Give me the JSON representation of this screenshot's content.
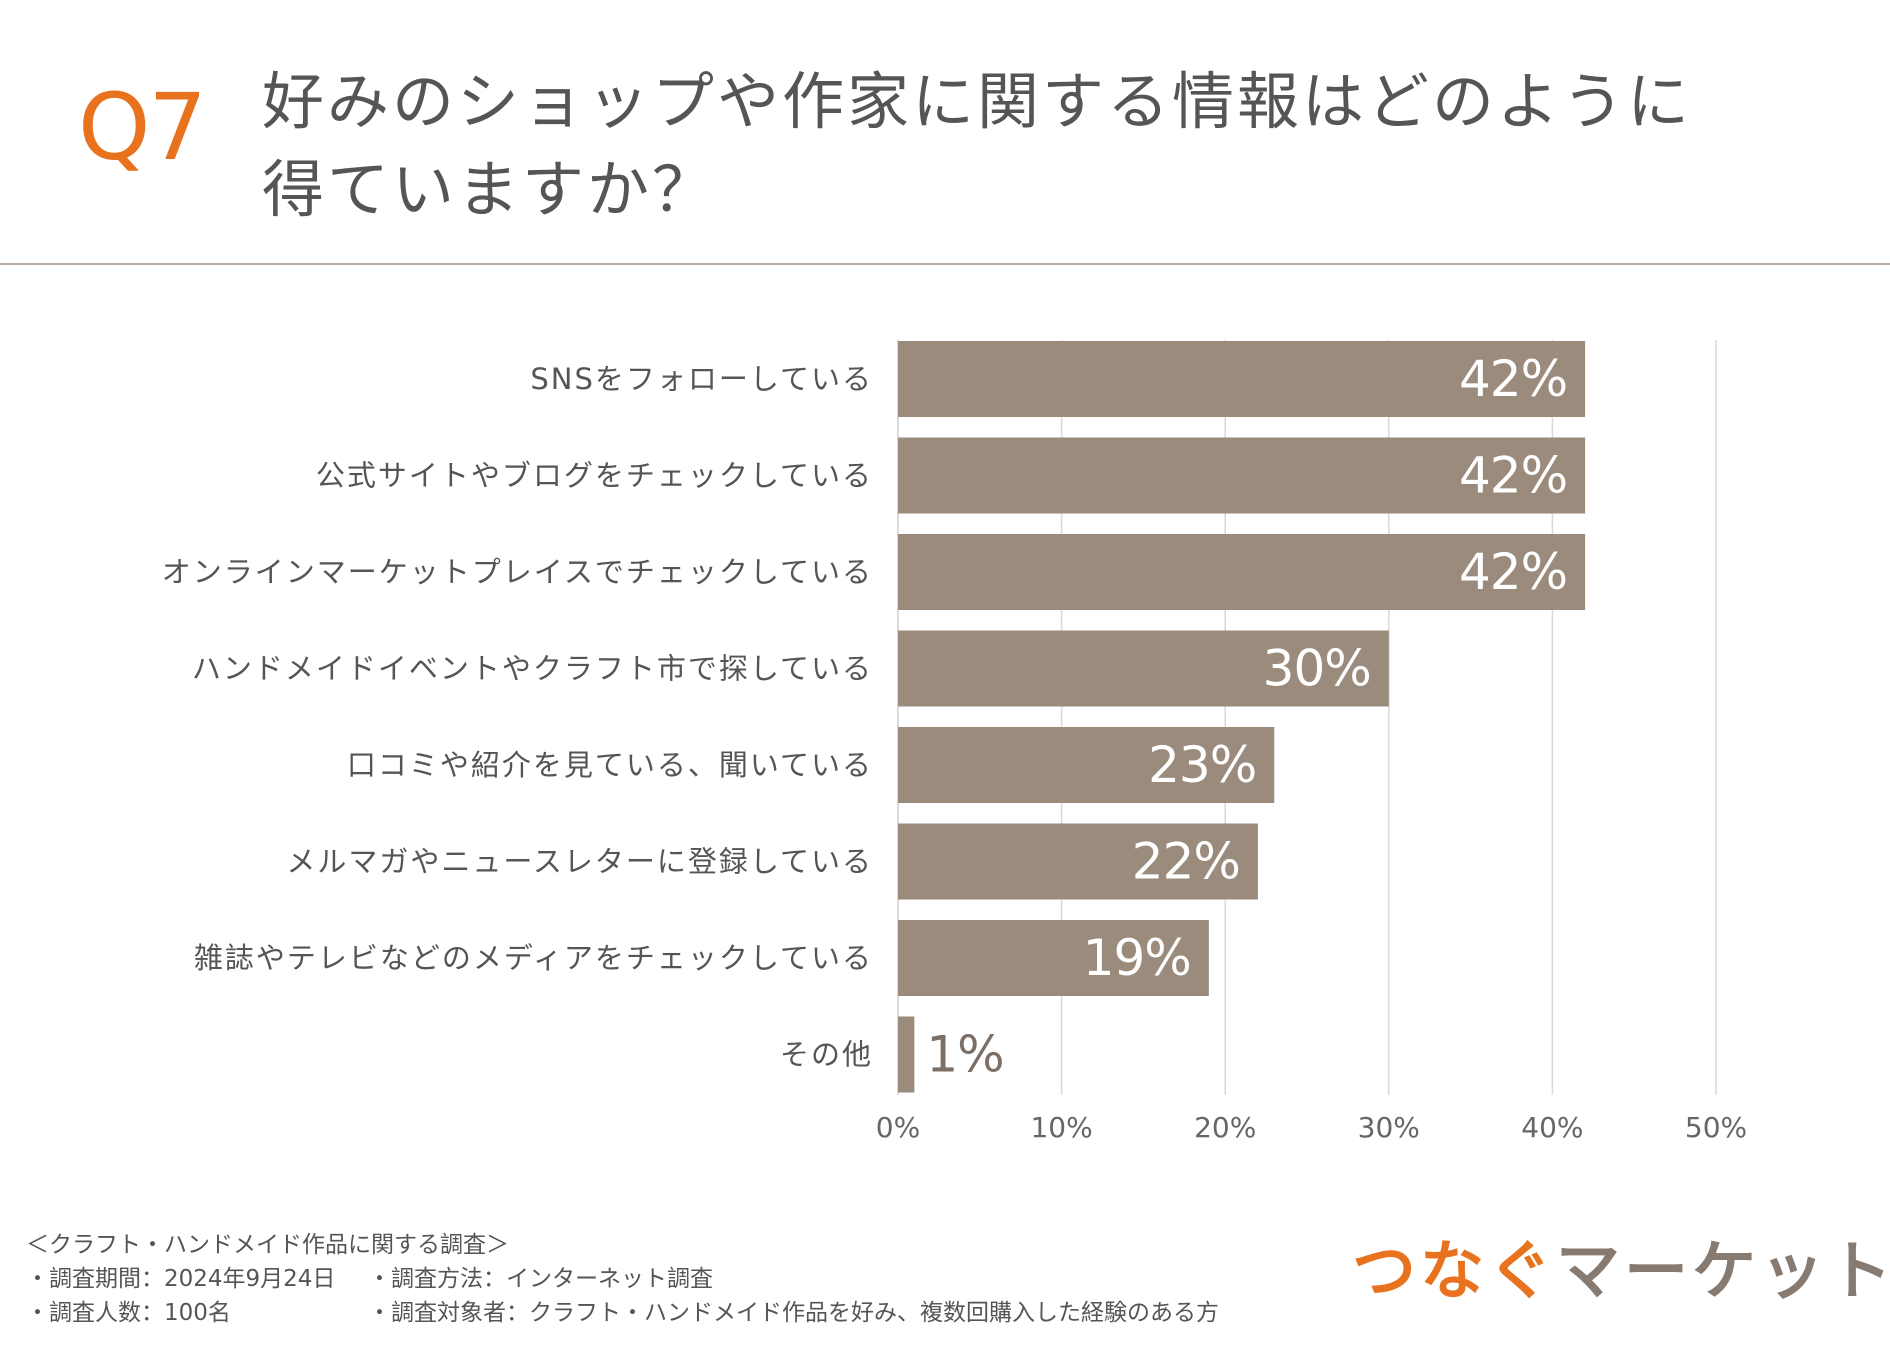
{
  "header": {
    "question_number": "Q7",
    "title_line1": "好みのショップや作家に関する情報はどのように",
    "title_line2": "得ていますか？"
  },
  "chart_data": {
    "type": "bar",
    "orientation": "horizontal",
    "categories": [
      "SNSをフォローしている",
      "公式サイトやブログをチェックしている",
      "オンラインマーケットプレイスでチェックしている",
      "ハンドメイドイベントやクラフト市で探している",
      "口コミや紹介を見ている、聞いている",
      "メルマガやニュースレターに登録している",
      "雑誌やテレビなどのメディアをチェックしている",
      "その他"
    ],
    "values": [
      42,
      42,
      42,
      30,
      23,
      22,
      19,
      1
    ],
    "value_labels": [
      "42%",
      "42%",
      "42%",
      "30%",
      "23%",
      "22%",
      "19%",
      "1%"
    ],
    "xlim": [
      0,
      50
    ],
    "x_ticks": [
      "0%",
      "10%",
      "20%",
      "30%",
      "40%",
      "50%"
    ],
    "x_tick_values": [
      0,
      10,
      20,
      30,
      40,
      50
    ],
    "grid": true,
    "bar_color": "#9a8b7d",
    "label_color": "#ffffff",
    "outside_label_color": "#7d6f65"
  },
  "footer": {
    "survey_name": "＜クラフト・ハンドメイド作品に関する調査＞",
    "period": "・調査期間：2024年9月24日",
    "method": "・調査方法：インターネット調査",
    "count": "・調査人数：100名",
    "target": "・調査対象者：クラフト・ハンドメイド作品を好み、複数回購入した経験のある方"
  },
  "logo": {
    "part1": "つなぐ",
    "part2": "マーケット"
  }
}
